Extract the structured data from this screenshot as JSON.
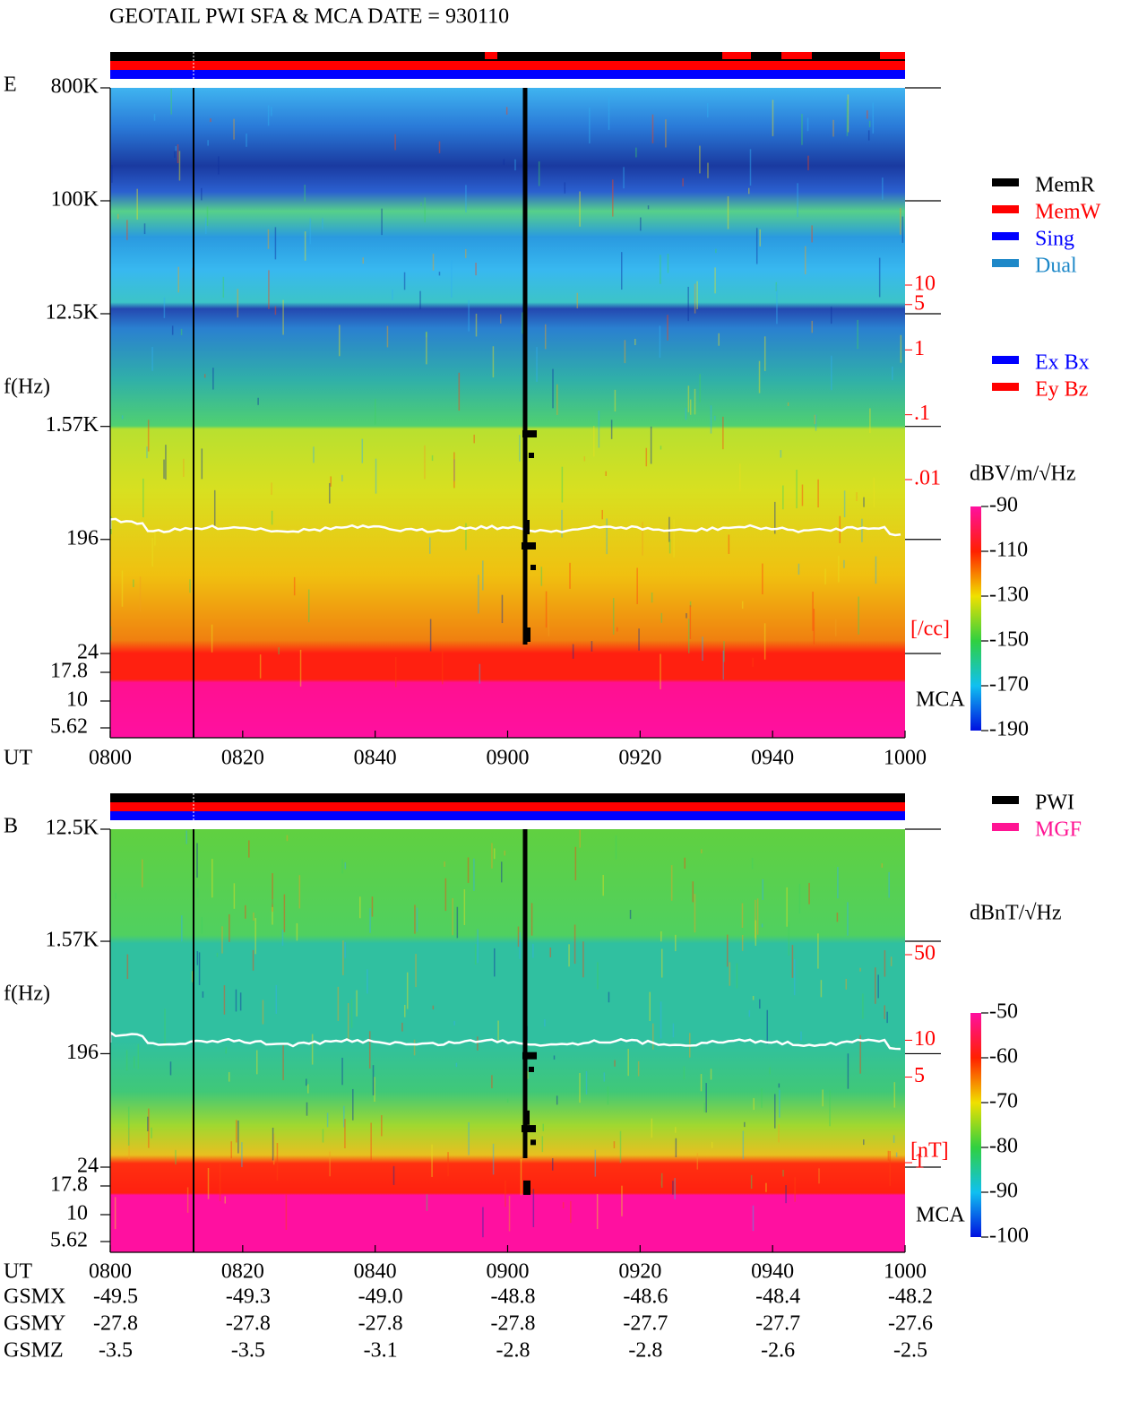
{
  "title": "GEOTAIL  PWI SFA & MCA   DATE = 930110",
  "time_axis": {
    "label": "UT",
    "ticks": [
      "0800",
      "0820",
      "0840",
      "0900",
      "0920",
      "0940",
      "1000"
    ]
  },
  "panels": [
    {
      "name": "E",
      "freq_label": "f(Hz)",
      "freq_ticks": [
        {
          "value": 800000,
          "label": "800K"
        },
        {
          "value": 100000,
          "label": "100K"
        },
        {
          "value": 12500,
          "label": "12.5K"
        },
        {
          "value": 1570,
          "label": "1.57K"
        },
        196,
        24
      ],
      "mca_label": "MCA",
      "mca_channels": [
        17.8,
        10,
        5.62
      ],
      "right_scale": {
        "ticks": [
          10,
          5,
          1,
          {
            "value": 0.1,
            "label": ".1"
          },
          {
            "value": 0.01,
            "label": ".01"
          }
        ],
        "unit": "[/cc]"
      },
      "colorbar": {
        "label": "dBV/m/√Hz",
        "lim": [
          -190,
          -90
        ],
        "ticks": [
          -90,
          -110,
          -130,
          -150,
          -170,
          -190
        ]
      },
      "legend": [
        [
          {
            "name": "MemR",
            "color": "#000000"
          },
          {
            "name": "MemW",
            "color": "#ff0000"
          },
          {
            "name": "Sing",
            "color": "#0000ff"
          },
          {
            "name": "Dual",
            "color": "#1e88c8"
          }
        ],
        [
          {
            "name": "Ex Bx",
            "color": "#0000ff"
          },
          {
            "name": "Ey Bz",
            "color": "#ff0000"
          }
        ]
      ]
    },
    {
      "name": "B",
      "freq_label": "f(Hz)",
      "freq_ticks": [
        {
          "value": 12500,
          "label": "12.5K"
        },
        {
          "value": 1570,
          "label": "1.57K"
        },
        196,
        24
      ],
      "mca_label": "MCA",
      "mca_channels": [
        17.8,
        10,
        5.62
      ],
      "right_scale": {
        "ticks": [
          50,
          10,
          5,
          1
        ],
        "unit": "[nT]"
      },
      "colorbar": {
        "label": "dBnT/√Hz",
        "lim": [
          -100,
          -50
        ],
        "ticks": [
          -50,
          -60,
          -70,
          -80,
          -90,
          -100
        ]
      },
      "legend": [
        [
          {
            "name": "PWI",
            "color": "#000000"
          },
          {
            "name": "MGF",
            "color": "#ff1493"
          }
        ]
      ]
    }
  ],
  "orbit": [
    {
      "label": "GSMX",
      "values": [
        "-49.5",
        "-49.3",
        "-49.0",
        "-48.8",
        "-48.6",
        "-48.4",
        "-48.2"
      ]
    },
    {
      "label": "GSMY",
      "values": [
        "-27.8",
        "-27.8",
        "-27.8",
        "-27.8",
        "-27.7",
        "-27.7",
        "-27.6"
      ]
    },
    {
      "label": "GSMZ",
      "values": [
        "-3.5",
        "-3.5",
        "-3.1",
        "-2.8",
        "-2.8",
        "-2.6",
        "-2.5"
      ]
    }
  ]
}
